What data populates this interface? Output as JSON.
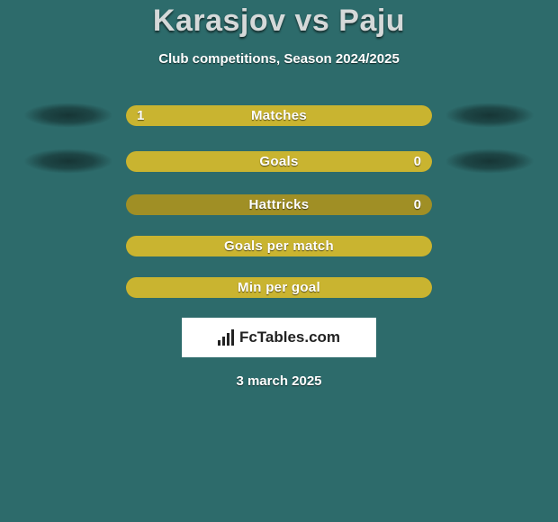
{
  "header": {
    "title": "Karasjov vs Paju",
    "subtitle": "Club competitions, Season 2024/2025"
  },
  "stats": [
    {
      "label": "Matches",
      "left_value": "1",
      "right_value": "",
      "fill_percent": 100,
      "show_left_shadow": true,
      "show_right_shadow": true,
      "track_color": "#a08f25",
      "fill_color": "#c9b430"
    },
    {
      "label": "Goals",
      "left_value": "",
      "right_value": "0",
      "fill_percent": 100,
      "show_left_shadow": true,
      "show_right_shadow": true,
      "track_color": "#a08f25",
      "fill_color": "#c9b430"
    },
    {
      "label": "Hattricks",
      "left_value": "",
      "right_value": "0",
      "fill_percent": 0,
      "show_left_shadow": false,
      "show_right_shadow": false,
      "track_color": "#a08f25",
      "fill_color": "#c9b430"
    },
    {
      "label": "Goals per match",
      "left_value": "",
      "right_value": "",
      "fill_percent": 100,
      "show_left_shadow": false,
      "show_right_shadow": false,
      "track_color": "#a08f25",
      "fill_color": "#c9b430"
    },
    {
      "label": "Min per goal",
      "left_value": "",
      "right_value": "",
      "fill_percent": 100,
      "show_left_shadow": false,
      "show_right_shadow": false,
      "track_color": "#a08f25",
      "fill_color": "#c9b430"
    }
  ],
  "logo": {
    "text": "FcTables.com"
  },
  "date": "3 march 2025",
  "style": {
    "background": "#2d6b6b",
    "title_color": "#d5d9d9",
    "text_color": "#ffffff",
    "logo_bg": "#ffffff",
    "logo_text_color": "#222222"
  }
}
